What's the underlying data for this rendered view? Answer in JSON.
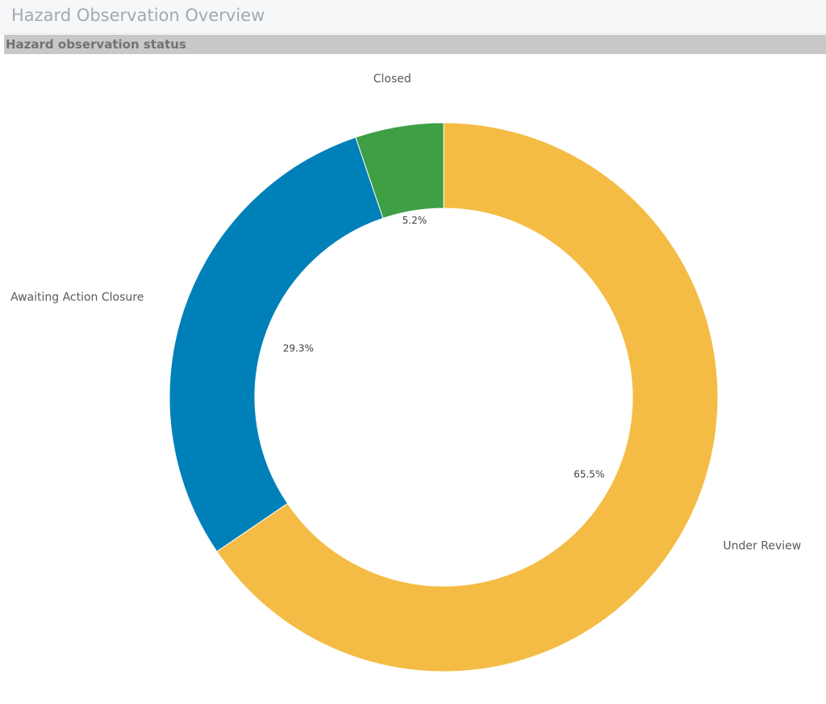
{
  "header": {
    "title": "Hazard Observation Overview"
  },
  "section": {
    "label": "Hazard observation status"
  },
  "chart_data": {
    "type": "pie",
    "donut": true,
    "title": "",
    "slices": [
      {
        "name": "Under Review",
        "percent": 65.5,
        "label": "65.5%",
        "color": "#f4bc45"
      },
      {
        "name": "Awaiting Action Closure",
        "percent": 29.3,
        "label": "29.3%",
        "color": "#0080b8"
      },
      {
        "name": "Closed",
        "percent": 5.2,
        "label": "5.2%",
        "color": "#3e9f45"
      }
    ],
    "start": "12 o'clock",
    "direction": "clockwise",
    "legend": "none"
  }
}
